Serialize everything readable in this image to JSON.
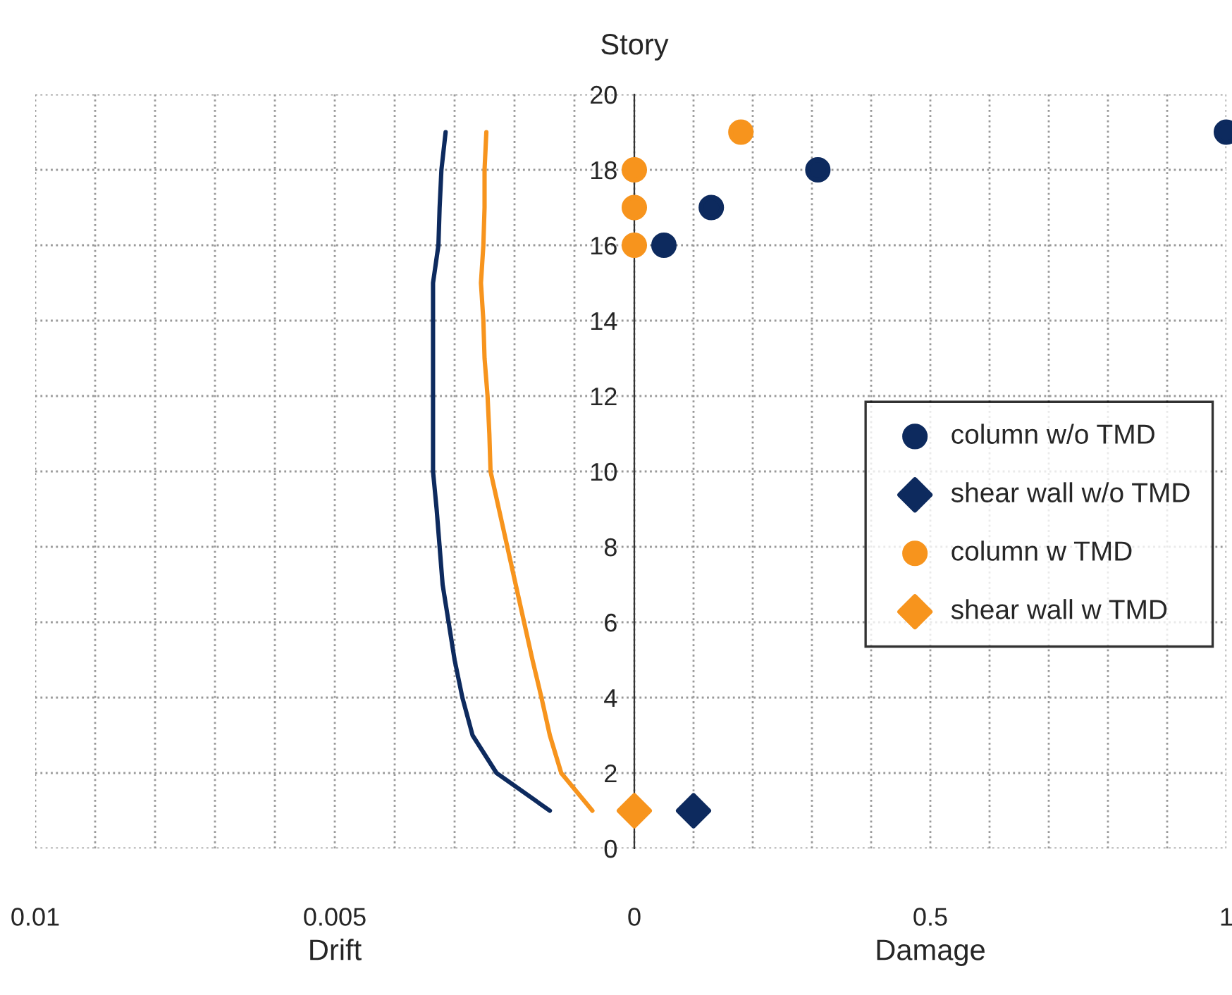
{
  "chart_data": [
    {
      "type": "line",
      "xlabel": "Drift",
      "xlim": [
        0.01,
        0
      ],
      "xticks": [
        0.01,
        {
          "value": 0.009,
          "label": null
        },
        {
          "value": 0.008,
          "label": null
        },
        {
          "value": 0.007,
          "label": null
        },
        {
          "value": 0.006,
          "label": null
        },
        0.005,
        {
          "value": 0.004,
          "label": null
        },
        {
          "value": 0.003,
          "label": null
        },
        {
          "value": 0.002,
          "label": null
        },
        {
          "value": 0.001,
          "label": null
        },
        {
          "value": 0,
          "label": null
        }
      ],
      "ylim": [
        0,
        20
      ],
      "yticks": [
        0,
        2,
        4,
        6,
        8,
        10,
        12,
        14,
        16,
        18,
        20
      ],
      "tick_labels": "x",
      "grid": true,
      "marker": "none",
      "line_style": "solid",
      "series": [
        {
          "color": "#0d2a5e",
          "x": [
            0.00141,
            0.0023,
            0.0027,
            0.00287,
            0.003,
            0.0031,
            0.0032,
            0.00325,
            0.0033,
            0.00336,
            0.00336,
            0.00336,
            0.00336,
            0.00336,
            0.00336,
            0.00327,
            0.00325,
            0.00322,
            0.00315
          ],
          "values": [
            1,
            2,
            3,
            4,
            5,
            6,
            7,
            8,
            9,
            10,
            11,
            12,
            13,
            14,
            15,
            16,
            17,
            18,
            19
          ]
        },
        {
          "color": "#f7941d",
          "x": [
            0.0007,
            0.00122,
            0.00141,
            0.00155,
            0.0017,
            0.00184,
            0.00198,
            0.00212,
            0.00226,
            0.0024,
            0.00242,
            0.00245,
            0.0025,
            0.00252,
            0.00256,
            0.00252,
            0.0025,
            0.0025,
            0.00247
          ],
          "values": [
            1,
            2,
            3,
            4,
            5,
            6,
            7,
            8,
            9,
            10,
            11,
            12,
            13,
            14,
            15,
            16,
            17,
            18,
            19
          ]
        }
      ]
    },
    {
      "type": "scatter",
      "xlabel": "Damage",
      "ylabel": "Story",
      "xlim": [
        0,
        1
      ],
      "xticks": [
        0,
        {
          "value": 0.1,
          "label": null
        },
        {
          "value": 0.2,
          "label": null
        },
        {
          "value": 0.3,
          "label": null
        },
        {
          "value": 0.4,
          "label": null
        },
        0.5,
        {
          "value": 0.6,
          "label": null
        },
        {
          "value": 0.7,
          "label": null
        },
        {
          "value": 0.8,
          "label": null
        },
        {
          "value": 0.9,
          "label": null
        },
        1
      ],
      "ylim": [
        0,
        20
      ],
      "yticks": [
        0,
        2,
        4,
        6,
        8,
        10,
        12,
        14,
        16,
        18,
        20
      ],
      "grid": true,
      "legend": "right",
      "series": [
        {
          "name": "column w/o TMD",
          "color": "#0d2a5e",
          "marker": "circle",
          "x": [
            0.05,
            0.13,
            0.31,
            1.0
          ],
          "values": [
            16,
            17,
            18,
            19
          ]
        },
        {
          "name": "shear wall w/o TMD",
          "color": "#0d2a5e",
          "marker": "diamond",
          "x": [
            0.1
          ],
          "values": [
            1
          ]
        },
        {
          "name": "column w TMD",
          "color": "#f7941d",
          "marker": "circle",
          "x": [
            0,
            0,
            0,
            0.18
          ],
          "values": [
            16,
            17,
            18,
            19
          ]
        },
        {
          "name": "shear wall w TMD",
          "color": "#f7941d",
          "marker": "diamond",
          "x": [
            0
          ],
          "values": [
            1
          ]
        }
      ]
    }
  ]
}
